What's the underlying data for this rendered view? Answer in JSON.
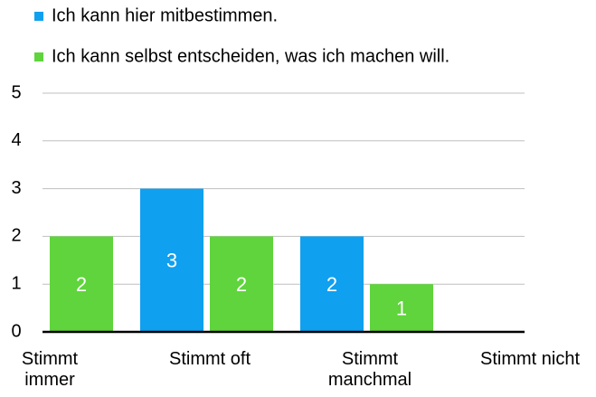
{
  "chart_data": {
    "type": "bar",
    "categories": [
      "Stimmt immer",
      "Stimmt oft",
      "Stimmt manchmal",
      "Stimmt nicht"
    ],
    "series": [
      {
        "name": "Ich kann hier mitbestimmen.",
        "color": "#0fa0f0",
        "values": [
          0,
          3,
          2,
          0
        ]
      },
      {
        "name": "Ich kann selbst entscheiden, was ich machen will.",
        "color": "#5fd43c",
        "values": [
          2,
          2,
          1,
          0
        ]
      }
    ],
    "ylim": [
      0,
      5
    ],
    "yticks": [
      0,
      1,
      2,
      3,
      4,
      5
    ],
    "grid": true
  }
}
